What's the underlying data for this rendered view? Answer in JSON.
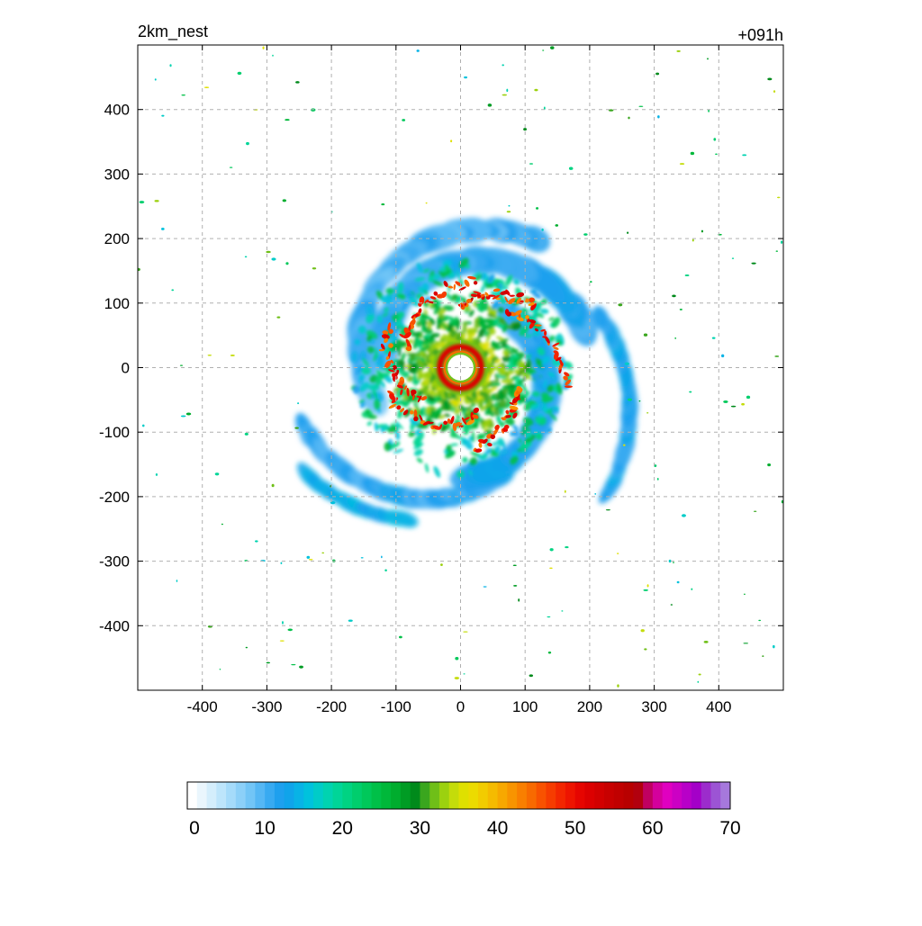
{
  "chart_data": {
    "type": "heatmap",
    "title_left": "2km_nest",
    "title_right": "+091h",
    "xlabel": "",
    "ylabel": "",
    "xlim": [
      -500,
      500
    ],
    "ylim": [
      -500,
      500
    ],
    "x_ticks": [
      -400,
      -300,
      -200,
      -100,
      0,
      100,
      200,
      300,
      400
    ],
    "y_ticks": [
      400,
      300,
      200,
      100,
      0,
      -100,
      -200,
      -300,
      -400
    ],
    "x_tick_labels": [
      "-400",
      "-300",
      "-200",
      "-100",
      "0",
      "100",
      "200",
      "300",
      "400"
    ],
    "y_tick_labels": [
      "400",
      "300",
      "200",
      "100",
      "0",
      "-100",
      "-200",
      "-300",
      "-400"
    ],
    "grid": true,
    "grid_style": "dashed",
    "colorbar": {
      "min": 0,
      "max": 70,
      "tick_values": [
        0,
        10,
        20,
        30,
        40,
        50,
        60,
        70
      ],
      "tick_labels": [
        "0",
        "10",
        "20",
        "30",
        "40",
        "50",
        "60",
        "70"
      ],
      "colors": [
        "#ffffff",
        "#eaf6fd",
        "#d4eefc",
        "#bde5fb",
        "#a5dbfa",
        "#8cd0f8",
        "#72c5f6",
        "#55b7f4",
        "#38aaf1",
        "#1ea0ee",
        "#10a4ea",
        "#08b3e6",
        "#00c2dd",
        "#00ccc8",
        "#00d3b0",
        "#00d598",
        "#00d382",
        "#00ce6d",
        "#00c85a",
        "#00c048",
        "#00b83a",
        "#00ad2e",
        "#009c24",
        "#008a1b",
        "#3aa61e",
        "#6fbf18",
        "#9cd10f",
        "#c4dc0a",
        "#dfe000",
        "#ecdb00",
        "#f2cc00",
        "#f5bb00",
        "#f7a800",
        "#f89400",
        "#f97f00",
        "#f86a00",
        "#f85200",
        "#f63c00",
        "#f32600",
        "#ee1400",
        "#e60500",
        "#dc0000",
        "#d20000",
        "#c80000",
        "#c00000",
        "#b80000",
        "#b2000e",
        "#c00060",
        "#d4009c",
        "#e000c0",
        "#cc00c4",
        "#b800c8",
        "#a400c8",
        "#9c2ccc",
        "#9c54d4",
        "#a678dc"
      ]
    },
    "field_description_values": {
      "eye_radius_km": 20,
      "eyewall_peak_value": 52,
      "center": [
        0,
        0
      ]
    }
  }
}
